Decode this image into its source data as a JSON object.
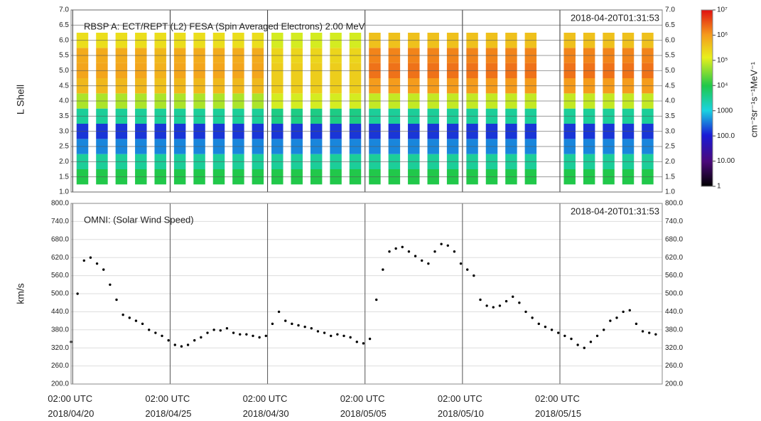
{
  "chart_data": [
    {
      "type": "heatmap",
      "title": "RBSP A: ECT/REPT (L2) FESA (Spin Averaged Electrons) 2.00 MeV",
      "timestamp": "2018-04-20T01:31:53",
      "ylabel": "L Shell",
      "x": [
        "2018-04-20T14:00",
        "2018-04-21T14:00",
        "2018-04-22T14:00",
        "2018-04-23T14:00",
        "2018-04-24T14:00",
        "2018-04-25T14:00",
        "2018-04-26T14:00",
        "2018-04-27T14:00",
        "2018-04-28T14:00",
        "2018-04-29T14:00",
        "2018-04-30T14:00",
        "2018-05-01T14:00",
        "2018-05-02T14:00",
        "2018-05-03T14:00",
        "2018-05-04T14:00",
        "2018-05-05T14:00",
        "2018-05-06T14:00",
        "2018-05-07T14:00",
        "2018-05-08T14:00",
        "2018-05-09T14:00",
        "2018-05-10T14:00",
        "2018-05-11T14:00",
        "2018-05-12T14:00",
        "2018-05-13T14:00",
        "2018-05-14T14:00",
        "2018-05-15T14:00",
        "2018-05-16T14:00",
        "2018-05-17T14:00",
        "2018-05-18T14:00",
        "2018-05-19T14:00"
      ],
      "y": [
        1.5,
        2.0,
        2.5,
        3.0,
        3.5,
        4.0,
        4.5,
        5.0,
        5.5,
        6.0
      ],
      "values": [
        [
          10000,
          3000,
          400,
          150,
          3000,
          60000,
          500000,
          800000,
          700000,
          200000
        ],
        [
          10000,
          3000,
          400,
          150,
          3000,
          60000,
          500000,
          800000,
          700000,
          200000
        ],
        [
          10000,
          3000,
          400,
          150,
          3000,
          60000,
          500000,
          800000,
          700000,
          200000
        ],
        [
          10000,
          3000,
          400,
          150,
          3000,
          60000,
          500000,
          800000,
          700000,
          200000
        ],
        [
          10000,
          3000,
          400,
          150,
          3000,
          60000,
          400000,
          600000,
          500000,
          200000
        ],
        [
          10000,
          3000,
          400,
          150,
          3000,
          60000,
          500000,
          800000,
          700000,
          200000
        ],
        [
          10000,
          3000,
          400,
          150,
          3000,
          60000,
          500000,
          800000,
          700000,
          200000
        ],
        [
          10000,
          3000,
          400,
          150,
          3000,
          60000,
          500000,
          800000,
          700000,
          200000
        ],
        [
          10000,
          3000,
          400,
          150,
          3000,
          60000,
          500000,
          800000,
          700000,
          200000
        ],
        [
          10000,
          3000,
          400,
          150,
          3000,
          60000,
          500000,
          800000,
          700000,
          200000
        ],
        [
          10000,
          3000,
          400,
          150,
          4000,
          100000,
          300000,
          300000,
          250000,
          100000
        ],
        [
          10000,
          3000,
          400,
          150,
          4000,
          100000,
          300000,
          300000,
          250000,
          100000
        ],
        [
          10000,
          3000,
          400,
          150,
          4000,
          100000,
          300000,
          300000,
          250000,
          100000
        ],
        [
          10000,
          3000,
          400,
          150,
          4000,
          100000,
          300000,
          300000,
          250000,
          100000
        ],
        [
          10000,
          3000,
          400,
          150,
          4000,
          100000,
          300000,
          300000,
          250000,
          100000
        ],
        [
          10000,
          3000,
          400,
          150,
          3000,
          80000,
          1000000,
          2000000,
          1500000,
          400000
        ],
        [
          10000,
          3000,
          400,
          150,
          3000,
          80000,
          1000000,
          2000000,
          1500000,
          400000
        ],
        [
          10000,
          3000,
          400,
          150,
          3000,
          80000,
          1000000,
          2000000,
          1500000,
          400000
        ],
        [
          10000,
          3000,
          400,
          150,
          3000,
          80000,
          1000000,
          2000000,
          1500000,
          400000
        ],
        [
          10000,
          3000,
          400,
          150,
          3000,
          80000,
          1000000,
          2000000,
          1500000,
          400000
        ],
        [
          10000,
          3000,
          400,
          150,
          3000,
          80000,
          1000000,
          2000000,
          1500000,
          400000
        ],
        [
          10000,
          3000,
          400,
          150,
          3000,
          80000,
          1000000,
          2000000,
          1500000,
          400000
        ],
        [
          10000,
          3000,
          400,
          150,
          3000,
          80000,
          1000000,
          2000000,
          1500000,
          400000
        ],
        [
          10000,
          3000,
          400,
          150,
          3000,
          80000,
          1000000,
          2000000,
          1500000,
          400000
        ],
        [
          null,
          null,
          null,
          null,
          null,
          null,
          null,
          null,
          null,
          null
        ],
        [
          10000,
          3000,
          400,
          150,
          3000,
          80000,
          1000000,
          2000000,
          1500000,
          400000
        ],
        [
          10000,
          3000,
          400,
          150,
          3000,
          80000,
          1000000,
          2000000,
          1500000,
          400000
        ],
        [
          10000,
          3000,
          400,
          150,
          3000,
          80000,
          1000000,
          2000000,
          1500000,
          400000
        ],
        [
          10000,
          3000,
          400,
          150,
          3000,
          80000,
          1000000,
          2000000,
          1500000,
          400000
        ],
        [
          10000,
          3000,
          400,
          150,
          3000,
          80000,
          1000000,
          2000000,
          1500000,
          400000
        ]
      ],
      "xlim": [
        "2018-04-20T00:00",
        "2018-05-20T08:00"
      ],
      "ylim": [
        1,
        7
      ],
      "yticks": [
        {
          "value": 1,
          "label": "1.0"
        },
        {
          "value": 1.5,
          "label": "1.5"
        },
        {
          "value": 2,
          "label": "2.0"
        },
        {
          "value": 2.5,
          "label": "2.5"
        },
        {
          "value": 3,
          "label": "3.0"
        },
        {
          "value": 3.5,
          "label": "3.5"
        },
        {
          "value": 4,
          "label": "4.0"
        },
        {
          "value": 4.5,
          "label": "4.5"
        },
        {
          "value": 5,
          "label": "5.0"
        },
        {
          "value": 5.5,
          "label": "5.5"
        },
        {
          "value": 6,
          "label": "6.0"
        },
        {
          "value": 6.5,
          "label": "6.5"
        },
        {
          "value": 7,
          "label": "7.0"
        }
      ],
      "colorbar": {
        "label": "cm⁻²sr⁻¹s⁻¹MeV⁻¹",
        "log": true,
        "lim": [
          1,
          10000000
        ],
        "ticks": [
          {
            "value": 1,
            "label": "1"
          },
          {
            "value": 10,
            "label": "10.00"
          },
          {
            "value": 100,
            "label": "100.0"
          },
          1000,
          {
            "value": 10000,
            "label": "10⁴"
          },
          {
            "value": 100000,
            "label": "10⁵"
          },
          {
            "value": 1000000,
            "label": "10⁶"
          },
          {
            "value": 10000000,
            "label": "10⁷"
          }
        ]
      }
    },
    {
      "type": "scatter",
      "title": "OMNI: (Solar Wind Speed)",
      "timestamp": "2018-04-20T01:31:53",
      "ylabel": "km/s",
      "color": "#000000",
      "x": [
        "2018-04-20T00:00",
        "2018-04-20T08:00",
        "2018-04-20T16:00",
        "2018-04-21T00:00",
        "2018-04-21T08:00",
        "2018-04-21T16:00",
        "2018-04-22T00:00",
        "2018-04-22T08:00",
        "2018-04-22T16:00",
        "2018-04-23T00:00",
        "2018-04-23T08:00",
        "2018-04-23T16:00",
        "2018-04-24T00:00",
        "2018-04-24T08:00",
        "2018-04-24T16:00",
        "2018-04-25T00:00",
        "2018-04-25T08:00",
        "2018-04-25T16:00",
        "2018-04-26T00:00",
        "2018-04-26T08:00",
        "2018-04-26T16:00",
        "2018-04-27T00:00",
        "2018-04-27T08:00",
        "2018-04-27T16:00",
        "2018-04-28T00:00",
        "2018-04-28T08:00",
        "2018-04-28T16:00",
        "2018-04-29T00:00",
        "2018-04-29T08:00",
        "2018-04-29T16:00",
        "2018-04-30T00:00",
        "2018-04-30T08:00",
        "2018-04-30T16:00",
        "2018-05-01T00:00",
        "2018-05-01T08:00",
        "2018-05-01T16:00",
        "2018-05-02T00:00",
        "2018-05-02T08:00",
        "2018-05-02T16:00",
        "2018-05-03T00:00",
        "2018-05-03T08:00",
        "2018-05-03T16:00",
        "2018-05-04T00:00",
        "2018-05-04T08:00",
        "2018-05-04T16:00",
        "2018-05-05T00:00",
        "2018-05-05T08:00",
        "2018-05-05T16:00",
        "2018-05-06T00:00",
        "2018-05-06T08:00",
        "2018-05-06T16:00",
        "2018-05-07T00:00",
        "2018-05-07T08:00",
        "2018-05-07T16:00",
        "2018-05-08T00:00",
        "2018-05-08T08:00",
        "2018-05-08T16:00",
        "2018-05-09T00:00",
        "2018-05-09T08:00",
        "2018-05-09T16:00",
        "2018-05-10T00:00",
        "2018-05-10T08:00",
        "2018-05-10T16:00",
        "2018-05-11T00:00",
        "2018-05-11T08:00",
        "2018-05-11T16:00",
        "2018-05-12T00:00",
        "2018-05-12T08:00",
        "2018-05-12T16:00",
        "2018-05-13T00:00",
        "2018-05-13T08:00",
        "2018-05-13T16:00",
        "2018-05-14T00:00",
        "2018-05-14T08:00",
        "2018-05-14T16:00",
        "2018-05-15T00:00",
        "2018-05-15T08:00",
        "2018-05-15T16:00",
        "2018-05-16T00:00",
        "2018-05-16T08:00",
        "2018-05-16T16:00",
        "2018-05-17T00:00",
        "2018-05-17T08:00",
        "2018-05-17T16:00",
        "2018-05-18T00:00",
        "2018-05-18T08:00",
        "2018-05-18T16:00",
        "2018-05-19T00:00",
        "2018-05-19T08:00",
        "2018-05-19T16:00",
        "2018-05-20T00:00"
      ],
      "values": [
        340,
        500,
        610,
        620,
        600,
        580,
        530,
        480,
        430,
        420,
        410,
        400,
        380,
        370,
        360,
        345,
        330,
        325,
        330,
        345,
        355,
        370,
        380,
        378,
        385,
        370,
        365,
        365,
        360,
        355,
        360,
        400,
        440,
        410,
        400,
        395,
        390,
        385,
        375,
        370,
        360,
        365,
        360,
        355,
        340,
        335,
        350,
        480,
        580,
        640,
        650,
        655,
        640,
        625,
        610,
        600,
        640,
        665,
        660,
        640,
        600,
        580,
        560,
        480,
        460,
        455,
        460,
        475,
        490,
        470,
        440,
        420,
        400,
        390,
        380,
        370,
        360,
        350,
        330,
        320,
        340,
        360,
        380,
        410,
        420,
        440,
        445,
        400,
        375,
        370,
        365
      ],
      "xlim": [
        "2018-04-20T00:00",
        "2018-05-20T08:00"
      ],
      "ylim": [
        200,
        800
      ],
      "yticks": [
        {
          "value": 200,
          "label": "200.0"
        },
        {
          "value": 260,
          "label": "260.0"
        },
        {
          "value": 320,
          "label": "320.0"
        },
        {
          "value": 380,
          "label": "380.0"
        },
        {
          "value": 440,
          "label": "440.0"
        },
        {
          "value": 500,
          "label": "500.0"
        },
        {
          "value": 560,
          "label": "560.0"
        },
        {
          "value": 620,
          "label": "620.0"
        },
        {
          "value": 680,
          "label": "680.0"
        },
        {
          "value": 740,
          "label": "740.0"
        },
        {
          "value": 800,
          "label": "800.0"
        }
      ],
      "xticks": [
        {
          "value": "2018-04-20T02:00",
          "label": "02:00 UTC\n2018/04/20"
        },
        {
          "value": "2018-04-25T02:00",
          "label": "02:00 UTC\n2018/04/25"
        },
        {
          "value": "2018-04-30T02:00",
          "label": "02:00 UTC\n2018/04/30"
        },
        {
          "value": "2018-05-05T02:00",
          "label": "02:00 UTC\n2018/05/05"
        },
        {
          "value": "2018-05-10T02:00",
          "label": "02:00 UTC\n2018/05/10"
        },
        {
          "value": "2018-05-15T02:00",
          "label": "02:00 UTC\n2018/05/15"
        }
      ]
    }
  ]
}
